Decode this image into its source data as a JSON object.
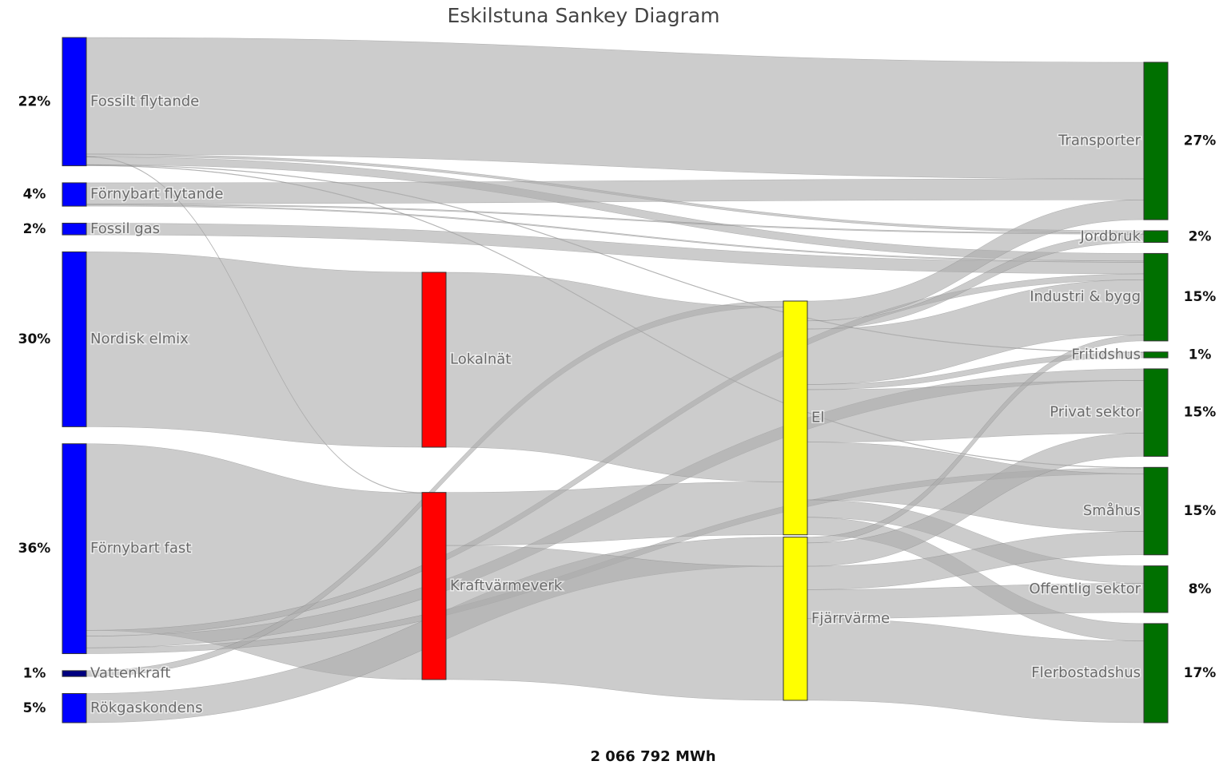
{
  "chart_data": {
    "type": "sankey",
    "title": "Eskilstuna Sankey Diagram",
    "total": "2 066 792 MWh",
    "link_color": "rgba(170,170,170,0.6)",
    "nodes": [
      {
        "name": "Fossilt flytande",
        "color": "#0000ff",
        "value": 22,
        "value_label": "22%"
      },
      {
        "name": "Förnybart flytande",
        "color": "#0000ff",
        "value": 4,
        "value_label": "4%"
      },
      {
        "name": "Fossil gas",
        "color": "#0000ff",
        "value": 2,
        "value_label": "2%"
      },
      {
        "name": "Nordisk elmix",
        "color": "#0000ff",
        "value": 30,
        "value_label": "30%"
      },
      {
        "name": "Förnybart fast",
        "color": "#0000ff",
        "value": 36,
        "value_label": "36%"
      },
      {
        "name": "Vattenkraft",
        "color": "#000080",
        "value": 1,
        "value_label": "1%"
      },
      {
        "name": "Rökgaskondens",
        "color": "#0000ff",
        "value": 5,
        "value_label": "5%"
      },
      {
        "name": "Lokalnät",
        "color": "#ff0000"
      },
      {
        "name": "Kraftvärmeverk",
        "color": "#ff0000"
      },
      {
        "name": "El",
        "color": "#ffff00"
      },
      {
        "name": "Fjärrvärme",
        "color": "#ffff00"
      },
      {
        "name": "Transporter",
        "color": "#007000",
        "value": 27,
        "value_label": "27%"
      },
      {
        "name": "Jordbruk",
        "color": "#007000",
        "value": 2,
        "value_label": "2%"
      },
      {
        "name": "Industri & bygg",
        "color": "#007000",
        "value": 15,
        "value_label": "15%"
      },
      {
        "name": "Fritidshus",
        "color": "#007000",
        "value": 1,
        "value_label": "1%"
      },
      {
        "name": "Privat sektor",
        "color": "#007000",
        "value": 15,
        "value_label": "15%"
      },
      {
        "name": "Småhus",
        "color": "#007000",
        "value": 15,
        "value_label": "15%"
      },
      {
        "name": "Offentlig sektor",
        "color": "#007000",
        "value": 8,
        "value_label": "8%"
      },
      {
        "name": "Flerbostadshus",
        "color": "#007000",
        "value": 17,
        "value_label": "17%"
      }
    ],
    "links": [
      {
        "source": 0,
        "target": 11,
        "value": 20
      },
      {
        "source": 0,
        "target": 12,
        "value": 0.4
      },
      {
        "source": 0,
        "target": 8,
        "value": 0.1
      },
      {
        "source": 0,
        "target": 13,
        "value": 1.3
      },
      {
        "source": 0,
        "target": 14,
        "value": 0.1
      },
      {
        "source": 0,
        "target": 16,
        "value": 0.1
      },
      {
        "source": 1,
        "target": 11,
        "value": 3.6
      },
      {
        "source": 1,
        "target": 12,
        "value": 0.2
      },
      {
        "source": 1,
        "target": 13,
        "value": 0.2
      },
      {
        "source": 2,
        "target": 13,
        "value": 2
      },
      {
        "source": 3,
        "target": 7,
        "value": 30
      },
      {
        "source": 4,
        "target": 8,
        "value": 32
      },
      {
        "source": 4,
        "target": 13,
        "value": 1
      },
      {
        "source": 4,
        "target": 15,
        "value": 2
      },
      {
        "source": 4,
        "target": 16,
        "value": 1
      },
      {
        "source": 5,
        "target": 9,
        "value": 1
      },
      {
        "source": 6,
        "target": 10,
        "value": 5
      },
      {
        "source": 7,
        "target": 9,
        "value": 30
      },
      {
        "source": 8,
        "target": 9,
        "value": 9.1
      },
      {
        "source": 8,
        "target": 10,
        "value": 23
      },
      {
        "source": 9,
        "target": 11,
        "value": 3.4
      },
      {
        "source": 9,
        "target": 12,
        "value": 1.4
      },
      {
        "source": 9,
        "target": 13,
        "value": 9.5
      },
      {
        "source": 9,
        "target": 14,
        "value": 0.9
      },
      {
        "source": 9,
        "target": 15,
        "value": 9
      },
      {
        "source": 9,
        "target": 16,
        "value": 9.9
      },
      {
        "source": 9,
        "target": 17,
        "value": 3
      },
      {
        "source": 9,
        "target": 18,
        "value": 3
      },
      {
        "source": 10,
        "target": 13,
        "value": 1
      },
      {
        "source": 10,
        "target": 15,
        "value": 4
      },
      {
        "source": 10,
        "target": 16,
        "value": 4
      },
      {
        "source": 10,
        "target": 17,
        "value": 5
      },
      {
        "source": 10,
        "target": 18,
        "value": 14
      }
    ]
  }
}
